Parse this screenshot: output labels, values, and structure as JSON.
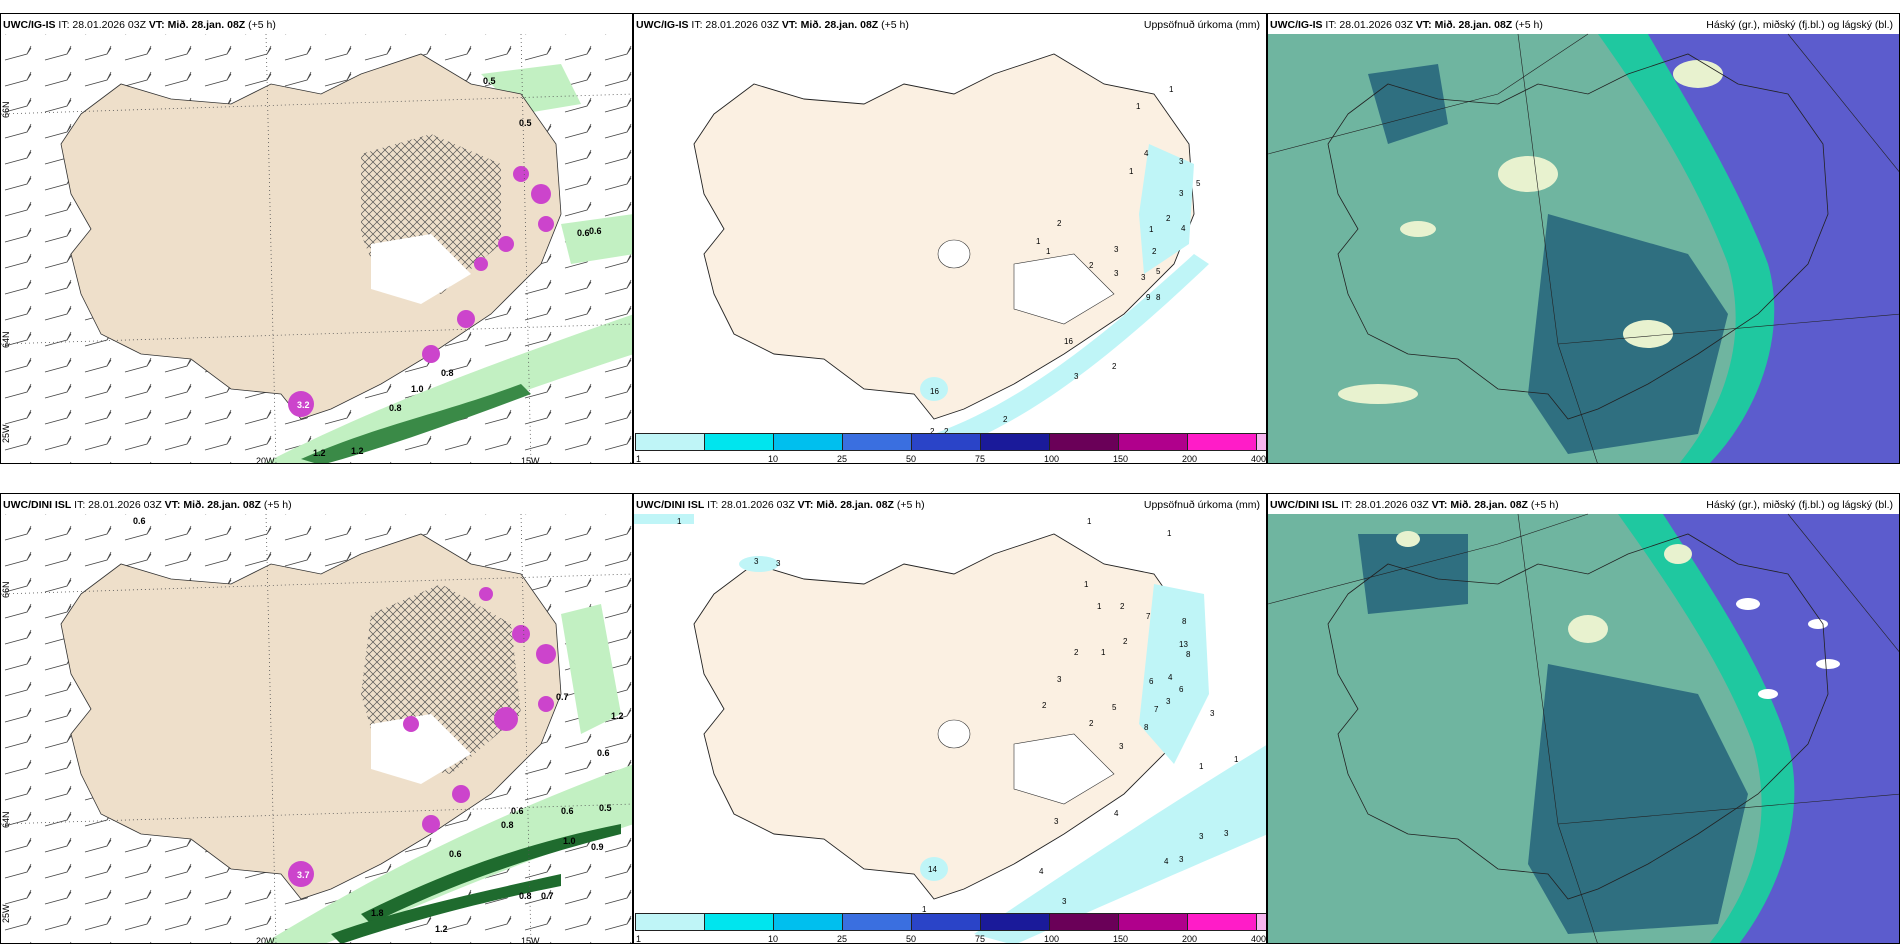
{
  "panels": {
    "top_left": {
      "model": "UWC/IG-IS",
      "it": "IT: 28.01.2026 03Z",
      "vt_prefix": "VT:",
      "vt": "Mið. 28.jan. 08Z",
      "lead": "(+5 h)"
    },
    "top_mid": {
      "model": "UWC/IG-IS",
      "it": "IT: 28.01.2026 03Z",
      "vt_prefix": "VT:",
      "vt": "Mið. 28.jan. 08Z",
      "lead": "(+5 h)",
      "right": "Uppsöfnuð úrkoma (mm)"
    },
    "top_right": {
      "model": "UWC/IG-IS",
      "it": "IT: 28.01.2026 03Z",
      "vt_prefix": "VT:",
      "vt": "Mið. 28.jan. 08Z",
      "lead": "(+5 h)",
      "right": "Háský (gr.), miðský (fj.bl.) og lágský (bl.)"
    },
    "bot_left": {
      "model": "UWC/DINI ISL",
      "it": "IT: 28.01.2026 03Z",
      "vt_prefix": "VT:",
      "vt": "Mið. 28.jan. 08Z",
      "lead": "(+5 h)"
    },
    "bot_mid": {
      "model": "UWC/DINI ISL",
      "it": "IT: 28.01.2026 03Z",
      "vt_prefix": "VT:",
      "vt": "Mið. 28.jan. 08Z",
      "lead": "(+5 h)",
      "right": "Uppsöfnuð úrkoma (mm)"
    },
    "bot_right": {
      "model": "UWC/DINI ISL",
      "it": "IT: 28.01.2026 03Z",
      "vt_prefix": "VT:",
      "vt": "Mið. 28.jan. 08Z",
      "lead": "(+5 h)",
      "right": "Háský (gr.), miðský (fj.bl.) og lágský (bl.)"
    }
  },
  "grid_labels": {
    "lat66": "66N",
    "lat64": "64N",
    "lon25": "25W",
    "lon20": "20W",
    "lon15": "15W"
  },
  "colorbar": {
    "labels": [
      "1",
      "10",
      "25",
      "50",
      "75",
      "100",
      "150",
      "200",
      "400"
    ],
    "colors": [
      "#bff5f7",
      "#00e5ee",
      "#00bfee",
      "#3a6fe0",
      "#2a44c8",
      "#1a1a9a",
      "#6a0058",
      "#b0008c",
      "#ff1cc8",
      "#f6b6f0"
    ]
  },
  "top_left_values": [
    "0.5",
    "0.5",
    "0.8",
    "1.0",
    "0.8",
    "0.6",
    "1.2",
    "3.2",
    "1.2",
    "0.6"
  ],
  "bot_left_values": [
    "0.6",
    "1.2",
    "0.6",
    "0.5",
    "0.6",
    "0.6",
    "0.8",
    "1.0",
    "0.9",
    "0.6",
    "0.8",
    "0.7",
    "1.2",
    "1.8",
    "0.7",
    "3.7"
  ],
  "top_mid_values": [
    "1",
    "1",
    "4",
    "1",
    "3",
    "3",
    "5",
    "2",
    "4",
    "1",
    "2",
    "3",
    "5",
    "3",
    "9",
    "8",
    "2",
    "1",
    "1",
    "2",
    "3",
    "16",
    "2",
    "3",
    "2",
    "2",
    "16",
    "2"
  ],
  "bot_mid_values": [
    "1",
    "1",
    "1",
    "3",
    "3",
    "1",
    "2",
    "7",
    "8",
    "13",
    "8",
    "1",
    "2",
    "1",
    "2",
    "3",
    "2",
    "6",
    "4",
    "6",
    "3",
    "7",
    "5",
    "8",
    "2",
    "3",
    "3",
    "1",
    "1",
    "3",
    "4",
    "3",
    "3",
    "4",
    "4",
    "3",
    "14",
    "3",
    "1"
  ],
  "colors": {
    "land": "#eedfca",
    "land_mid": "#fbf0e2",
    "cloud_high": "#6fb5a0",
    "cloud_dark": "#2f6f80",
    "cloud_mid": "#5c5ccd",
    "cloud_low": "#1fc8a0",
    "green_light": "#c2f0c2",
    "green_dark": "#1f6b2e",
    "pink": "#cc44cc"
  }
}
